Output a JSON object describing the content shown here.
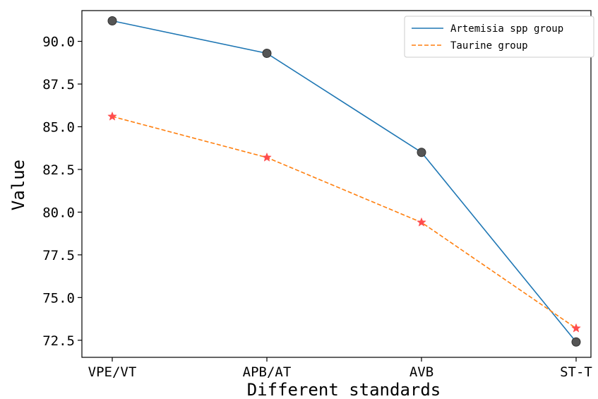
{
  "chart_data": {
    "type": "line",
    "title": "",
    "xlabel": "Different standards",
    "ylabel": "Value",
    "categories": [
      "VPE/VT",
      "APB/AT",
      "AVB",
      "ST-T"
    ],
    "ylim": [
      71.5,
      91.8
    ],
    "yticks": [
      "72.5",
      "75.0",
      "77.5",
      "80.0",
      "82.5",
      "85.0",
      "87.5",
      "90.0"
    ],
    "grid": false,
    "legend_position": "top-right",
    "series": [
      {
        "name": "Artemisia spp group",
        "values": [
          91.2,
          89.3,
          83.5,
          72.4
        ],
        "color": "#1f77b4",
        "line_style": "solid",
        "marker": "circle",
        "marker_color": "#555555"
      },
      {
        "name": "Taurine group",
        "values": [
          85.6,
          83.2,
          79.4,
          73.2
        ],
        "color": "#ff7f0e",
        "line_style": "dashed",
        "marker": "star",
        "marker_color": "#ff4d4d"
      }
    ]
  }
}
